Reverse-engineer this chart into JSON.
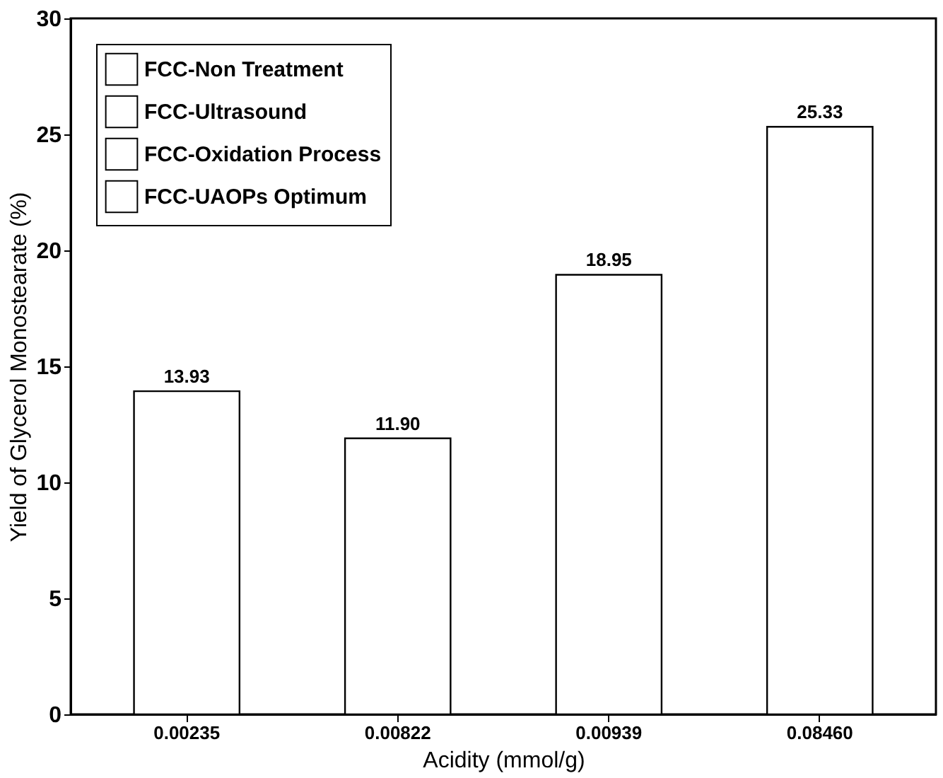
{
  "chart_data": {
    "type": "bar",
    "xlabel": "Acidity (mmol/g)",
    "ylabel": "Yield of Glycerol Monostearate (%)",
    "categories": [
      "0.00235",
      "0.00822",
      "0.00939",
      "0.08460"
    ],
    "series": [
      {
        "name": "FCC-Non Treatment",
        "color": "#ffffff",
        "values": [
          13.93,
          null,
          null,
          null
        ]
      },
      {
        "name": "FCC-Ultrasound",
        "color": "#ffffff",
        "values": [
          null,
          11.9,
          null,
          null
        ]
      },
      {
        "name": "FCC-Oxidation Process",
        "color": "#ffffff",
        "values": [
          null,
          null,
          18.95,
          null
        ]
      },
      {
        "name": "FCC-UAOPs Optimum",
        "color": "#ffffff",
        "values": [
          null,
          null,
          null,
          25.33
        ]
      }
    ],
    "value_labels": [
      "13.93",
      "11.90",
      "18.95",
      "25.33"
    ],
    "ylim": [
      0,
      30
    ],
    "yticks": [
      0,
      5,
      10,
      15,
      20,
      25,
      30
    ],
    "grid": false,
    "legend": "top left"
  }
}
